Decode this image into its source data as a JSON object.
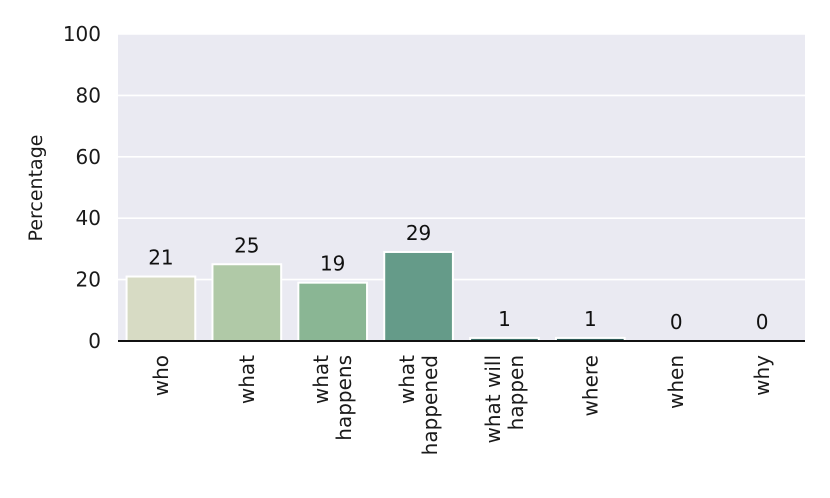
{
  "chart_data": {
    "type": "bar",
    "title": "",
    "xlabel": "",
    "ylabel": "Percentage",
    "ylim": [
      0,
      100
    ],
    "yticks": [
      "0",
      "20",
      "40",
      "60",
      "80",
      "100"
    ],
    "grid": true,
    "categories": [
      [
        "who"
      ],
      [
        "what"
      ],
      [
        "what",
        "happens"
      ],
      [
        "what",
        "happened"
      ],
      [
        "what will",
        "happen"
      ],
      [
        "where"
      ],
      [
        "when"
      ],
      [
        "why"
      ]
    ],
    "values": [
      21,
      25,
      19,
      29,
      1,
      1,
      0,
      0
    ],
    "data_labels": [
      "21",
      "25",
      "19",
      "29",
      "1",
      "1",
      "0",
      "0"
    ],
    "colors": [
      "#d7dbc4",
      "#b0c9a7",
      "#8ab694",
      "#659b89",
      "#3a6e67",
      "#2c5856",
      "#1f4744",
      "#153836"
    ],
    "background": "#eaeaf2"
  }
}
